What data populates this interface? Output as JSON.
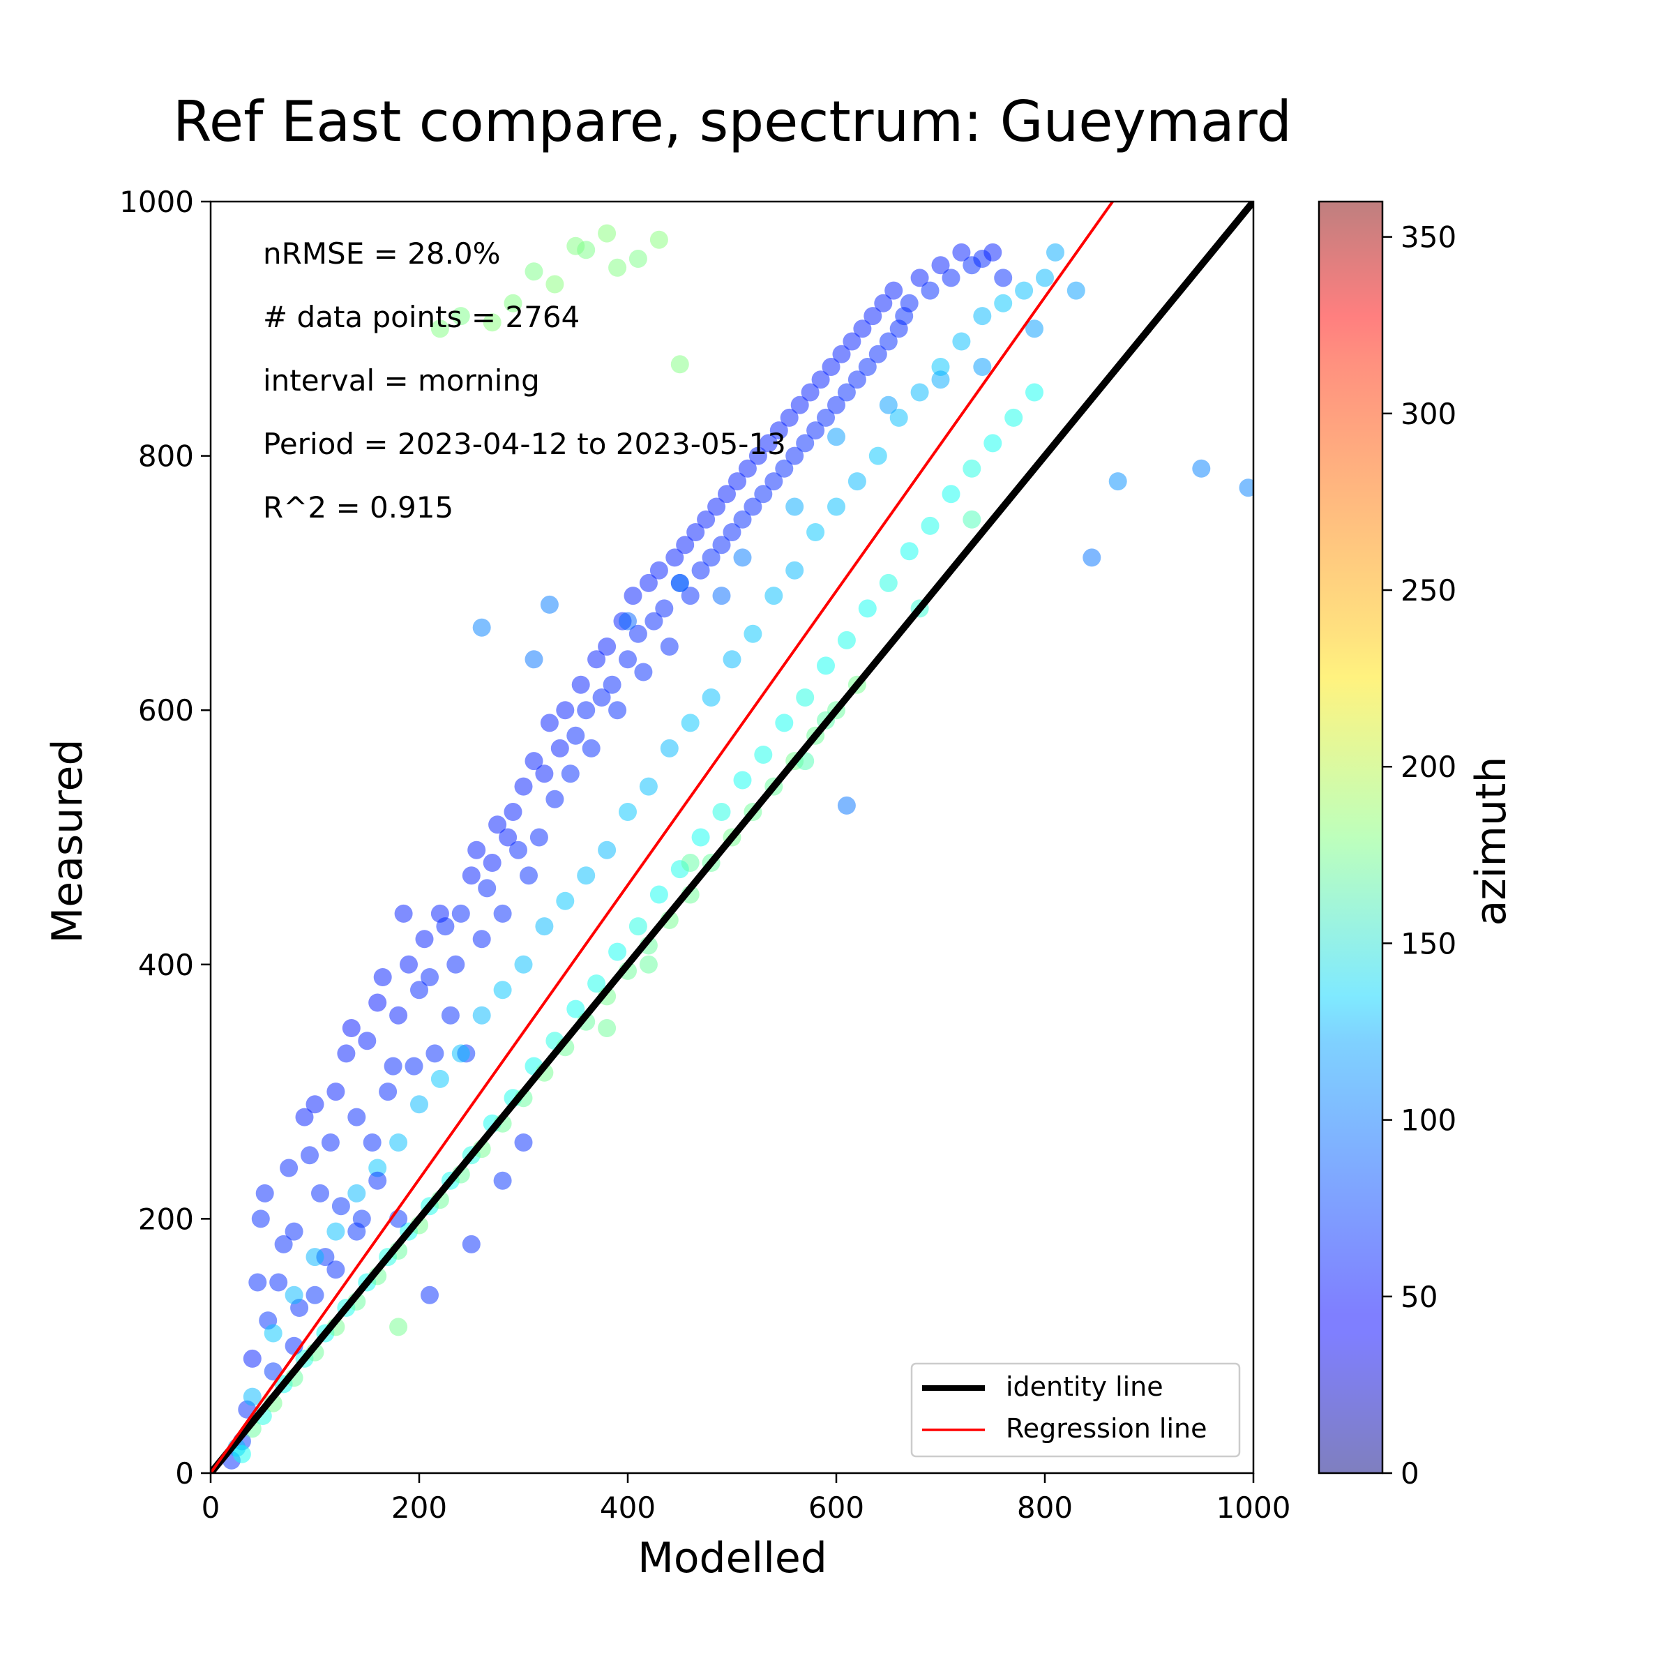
{
  "chart_data": {
    "type": "scatter",
    "title": "Ref East compare, spectrum: Gueymard",
    "xlabel": "Modelled",
    "ylabel": "Measured",
    "xlim": [
      0,
      1000
    ],
    "ylim": [
      0,
      1000
    ],
    "x_ticks": [
      "0",
      "200",
      "400",
      "600",
      "800",
      "1000"
    ],
    "y_ticks": [
      "0",
      "200",
      "400",
      "600",
      "800",
      "1000"
    ],
    "grid": false,
    "annotations": [
      "nRMSE = 28.0%",
      "# data points = 2764",
      "interval = morning",
      "Period = 2023-04-12 to 2023-05-13",
      "R^2 = 0.915"
    ],
    "legend": {
      "placement": "lower-right",
      "entries": [
        {
          "label": "identity line",
          "color": "#000000"
        },
        {
          "label": "Regression line",
          "color": "#ff0000"
        }
      ]
    },
    "colorbar": {
      "label": "azimuth",
      "range": [
        0,
        360
      ],
      "ticks": [
        "0",
        "50",
        "100",
        "150",
        "200",
        "250",
        "300",
        "350"
      ],
      "colormap": "jet",
      "alpha": 0.5
    },
    "lines": [
      {
        "name": "identity line",
        "points": [
          [
            0,
            0
          ],
          [
            1000,
            1000
          ]
        ],
        "color": "#000000"
      },
      {
        "name": "Regression line",
        "points": [
          [
            0,
            0
          ],
          [
            865,
            1000
          ]
        ],
        "color": "#ff0000"
      }
    ],
    "point_count": 2764,
    "points": [
      [
        20,
        10,
        60
      ],
      [
        30,
        25,
        65
      ],
      [
        35,
        50,
        60
      ],
      [
        40,
        90,
        55
      ],
      [
        45,
        150,
        60
      ],
      [
        48,
        200,
        60
      ],
      [
        52,
        220,
        58
      ],
      [
        55,
        120,
        62
      ],
      [
        60,
        80,
        65
      ],
      [
        65,
        150,
        60
      ],
      [
        70,
        180,
        60
      ],
      [
        75,
        240,
        58
      ],
      [
        80,
        190,
        60
      ],
      [
        85,
        130,
        60
      ],
      [
        90,
        280,
        55
      ],
      [
        95,
        250,
        58
      ],
      [
        100,
        290,
        55
      ],
      [
        105,
        220,
        60
      ],
      [
        110,
        170,
        62
      ],
      [
        115,
        260,
        58
      ],
      [
        120,
        300,
        55
      ],
      [
        125,
        210,
        62
      ],
      [
        130,
        330,
        55
      ],
      [
        135,
        350,
        52
      ],
      [
        140,
        280,
        58
      ],
      [
        145,
        200,
        62
      ],
      [
        150,
        340,
        55
      ],
      [
        155,
        260,
        60
      ],
      [
        160,
        370,
        52
      ],
      [
        165,
        390,
        55
      ],
      [
        170,
        300,
        58
      ],
      [
        175,
        320,
        58
      ],
      [
        180,
        360,
        55
      ],
      [
        185,
        440,
        55
      ],
      [
        190,
        400,
        55
      ],
      [
        195,
        320,
        60
      ],
      [
        200,
        380,
        58
      ],
      [
        205,
        420,
        55
      ],
      [
        210,
        390,
        58
      ],
      [
        215,
        330,
        60
      ],
      [
        220,
        440,
        55
      ],
      [
        225,
        430,
        58
      ],
      [
        230,
        360,
        60
      ],
      [
        235,
        400,
        58
      ],
      [
        240,
        440,
        58
      ],
      [
        245,
        330,
        62
      ],
      [
        250,
        470,
        55
      ],
      [
        255,
        490,
        55
      ],
      [
        260,
        420,
        58
      ],
      [
        265,
        460,
        58
      ],
      [
        270,
        480,
        55
      ],
      [
        275,
        510,
        55
      ],
      [
        280,
        440,
        60
      ],
      [
        285,
        500,
        55
      ],
      [
        290,
        520,
        55
      ],
      [
        295,
        490,
        58
      ],
      [
        300,
        540,
        55
      ],
      [
        305,
        470,
        60
      ],
      [
        310,
        560,
        55
      ],
      [
        315,
        500,
        58
      ],
      [
        320,
        550,
        55
      ],
      [
        325,
        590,
        55
      ],
      [
        330,
        530,
        58
      ],
      [
        335,
        570,
        55
      ],
      [
        340,
        600,
        55
      ],
      [
        345,
        550,
        60
      ],
      [
        350,
        580,
        58
      ],
      [
        355,
        620,
        55
      ],
      [
        360,
        600,
        58
      ],
      [
        365,
        570,
        60
      ],
      [
        370,
        640,
        55
      ],
      [
        375,
        610,
        58
      ],
      [
        380,
        650,
        55
      ],
      [
        385,
        620,
        58
      ],
      [
        390,
        600,
        60
      ],
      [
        395,
        670,
        55
      ],
      [
        400,
        640,
        58
      ],
      [
        405,
        690,
        55
      ],
      [
        410,
        660,
        58
      ],
      [
        415,
        630,
        60
      ],
      [
        420,
        700,
        55
      ],
      [
        425,
        670,
        58
      ],
      [
        430,
        710,
        55
      ],
      [
        435,
        680,
        58
      ],
      [
        440,
        650,
        60
      ],
      [
        445,
        720,
        55
      ],
      [
        450,
        700,
        58
      ],
      [
        455,
        730,
        55
      ],
      [
        460,
        690,
        60
      ],
      [
        465,
        740,
        55
      ],
      [
        470,
        710,
        58
      ],
      [
        475,
        750,
        55
      ],
      [
        480,
        720,
        60
      ],
      [
        485,
        760,
        55
      ],
      [
        490,
        730,
        58
      ],
      [
        495,
        770,
        55
      ],
      [
        500,
        740,
        58
      ],
      [
        505,
        780,
        55
      ],
      [
        510,
        750,
        60
      ],
      [
        515,
        790,
        55
      ],
      [
        520,
        760,
        58
      ],
      [
        525,
        800,
        55
      ],
      [
        530,
        770,
        60
      ],
      [
        535,
        810,
        55
      ],
      [
        540,
        780,
        58
      ],
      [
        545,
        820,
        55
      ],
      [
        550,
        790,
        60
      ],
      [
        555,
        830,
        55
      ],
      [
        560,
        800,
        58
      ],
      [
        565,
        840,
        55
      ],
      [
        570,
        810,
        60
      ],
      [
        575,
        850,
        55
      ],
      [
        580,
        820,
        58
      ],
      [
        585,
        860,
        55
      ],
      [
        590,
        830,
        60
      ],
      [
        595,
        870,
        55
      ],
      [
        600,
        840,
        58
      ],
      [
        605,
        880,
        55
      ],
      [
        610,
        850,
        60
      ],
      [
        615,
        890,
        55
      ],
      [
        620,
        860,
        58
      ],
      [
        625,
        900,
        55
      ],
      [
        630,
        870,
        60
      ],
      [
        635,
        910,
        55
      ],
      [
        640,
        880,
        58
      ],
      [
        645,
        920,
        55
      ],
      [
        650,
        890,
        60
      ],
      [
        655,
        930,
        55
      ],
      [
        660,
        900,
        58
      ],
      [
        665,
        910,
        60
      ],
      [
        670,
        920,
        58
      ],
      [
        680,
        940,
        55
      ],
      [
        690,
        930,
        60
      ],
      [
        700,
        950,
        55
      ],
      [
        710,
        940,
        58
      ],
      [
        720,
        960,
        55
      ],
      [
        730,
        950,
        60
      ],
      [
        740,
        955,
        58
      ],
      [
        750,
        960,
        55
      ],
      [
        760,
        940,
        60
      ],
      [
        25,
        20,
        110
      ],
      [
        40,
        60,
        110
      ],
      [
        60,
        110,
        115
      ],
      [
        80,
        140,
        110
      ],
      [
        100,
        170,
        108
      ],
      [
        120,
        190,
        112
      ],
      [
        140,
        220,
        110
      ],
      [
        160,
        240,
        115
      ],
      [
        180,
        260,
        112
      ],
      [
        200,
        290,
        110
      ],
      [
        220,
        310,
        115
      ],
      [
        240,
        330,
        112
      ],
      [
        260,
        360,
        110
      ],
      [
        280,
        380,
        115
      ],
      [
        300,
        400,
        112
      ],
      [
        320,
        430,
        110
      ],
      [
        340,
        450,
        115
      ],
      [
        360,
        470,
        112
      ],
      [
        380,
        490,
        110
      ],
      [
        400,
        520,
        115
      ],
      [
        420,
        540,
        112
      ],
      [
        440,
        570,
        110
      ],
      [
        460,
        590,
        115
      ],
      [
        480,
        610,
        112
      ],
      [
        500,
        640,
        110
      ],
      [
        520,
        660,
        115
      ],
      [
        540,
        690,
        112
      ],
      [
        560,
        710,
        110
      ],
      [
        580,
        740,
        115
      ],
      [
        600,
        760,
        112
      ],
      [
        620,
        780,
        110
      ],
      [
        640,
        800,
        115
      ],
      [
        660,
        830,
        112
      ],
      [
        680,
        850,
        110
      ],
      [
        700,
        870,
        115
      ],
      [
        720,
        890,
        112
      ],
      [
        740,
        910,
        110
      ],
      [
        760,
        920,
        115
      ],
      [
        780,
        930,
        112
      ],
      [
        800,
        940,
        110
      ],
      [
        560,
        760,
        105
      ],
      [
        600,
        815,
        100
      ],
      [
        650,
        840,
        100
      ],
      [
        700,
        860,
        105
      ],
      [
        740,
        870,
        100
      ],
      [
        790,
        900,
        100
      ],
      [
        810,
        960,
        105
      ],
      [
        830,
        930,
        100
      ],
      [
        870,
        780,
        95
      ],
      [
        950,
        790,
        90
      ],
      [
        995,
        775,
        90
      ],
      [
        845,
        720,
        85
      ],
      [
        610,
        525,
        85
      ],
      [
        310,
        640,
        85
      ],
      [
        260,
        665,
        90
      ],
      [
        325,
        683,
        88
      ],
      [
        400,
        670,
        80
      ],
      [
        450,
        700,
        85
      ],
      [
        490,
        690,
        82
      ],
      [
        510,
        720,
        88
      ],
      [
        30,
        15,
        140
      ],
      [
        50,
        45,
        145
      ],
      [
        70,
        70,
        140
      ],
      [
        90,
        90,
        145
      ],
      [
        110,
        110,
        140
      ],
      [
        130,
        130,
        142
      ],
      [
        150,
        150,
        140
      ],
      [
        170,
        170,
        145
      ],
      [
        190,
        190,
        140
      ],
      [
        210,
        210,
        142
      ],
      [
        230,
        230,
        140
      ],
      [
        250,
        250,
        145
      ],
      [
        270,
        275,
        140
      ],
      [
        290,
        295,
        142
      ],
      [
        310,
        320,
        140
      ],
      [
        330,
        340,
        145
      ],
      [
        350,
        365,
        140
      ],
      [
        370,
        385,
        142
      ],
      [
        390,
        410,
        140
      ],
      [
        410,
        430,
        145
      ],
      [
        430,
        455,
        140
      ],
      [
        450,
        475,
        142
      ],
      [
        470,
        500,
        140
      ],
      [
        490,
        520,
        145
      ],
      [
        510,
        545,
        140
      ],
      [
        530,
        565,
        142
      ],
      [
        550,
        590,
        140
      ],
      [
        570,
        610,
        145
      ],
      [
        590,
        635,
        140
      ],
      [
        610,
        655,
        142
      ],
      [
        630,
        680,
        140
      ],
      [
        650,
        700,
        145
      ],
      [
        670,
        725,
        140
      ],
      [
        690,
        745,
        142
      ],
      [
        710,
        770,
        140
      ],
      [
        730,
        790,
        145
      ],
      [
        750,
        810,
        140
      ],
      [
        770,
        830,
        142
      ],
      [
        790,
        850,
        140
      ],
      [
        680,
        680,
        150
      ],
      [
        40,
        35,
        170
      ],
      [
        60,
        55,
        175
      ],
      [
        80,
        75,
        170
      ],
      [
        100,
        95,
        172
      ],
      [
        120,
        115,
        175
      ],
      [
        140,
        135,
        170
      ],
      [
        160,
        155,
        172
      ],
      [
        180,
        175,
        170
      ],
      [
        200,
        195,
        175
      ],
      [
        220,
        215,
        172
      ],
      [
        240,
        235,
        170
      ],
      [
        260,
        255,
        175
      ],
      [
        280,
        275,
        172
      ],
      [
        300,
        295,
        170
      ],
      [
        320,
        315,
        175
      ],
      [
        340,
        335,
        172
      ],
      [
        360,
        355,
        170
      ],
      [
        380,
        375,
        175
      ],
      [
        400,
        395,
        172
      ],
      [
        420,
        415,
        170
      ],
      [
        440,
        435,
        175
      ],
      [
        460,
        455,
        172
      ],
      [
        480,
        480,
        170
      ],
      [
        500,
        500,
        175
      ],
      [
        520,
        520,
        172
      ],
      [
        540,
        540,
        170
      ],
      [
        560,
        560,
        175
      ],
      [
        580,
        580,
        172
      ],
      [
        600,
        600,
        170
      ],
      [
        620,
        620,
        175
      ],
      [
        220,
        900,
        180
      ],
      [
        240,
        910,
        178
      ],
      [
        270,
        905,
        182
      ],
      [
        290,
        920,
        180
      ],
      [
        310,
        945,
        178
      ],
      [
        330,
        935,
        182
      ],
      [
        350,
        965,
        180
      ],
      [
        360,
        962,
        178
      ],
      [
        380,
        975,
        182
      ],
      [
        390,
        948,
        180
      ],
      [
        410,
        955,
        178
      ],
      [
        430,
        970,
        182
      ],
      [
        450,
        872,
        180
      ],
      [
        730,
        750,
        160
      ],
      [
        590,
        592,
        165
      ],
      [
        570,
        560,
        162
      ],
      [
        460,
        480,
        168
      ],
      [
        420,
        400,
        170
      ],
      [
        380,
        350,
        172
      ],
      [
        180,
        115,
        175
      ],
      [
        210,
        140,
        60
      ],
      [
        250,
        180,
        60
      ],
      [
        280,
        230,
        62
      ],
      [
        300,
        260,
        60
      ],
      [
        180,
        200,
        62
      ],
      [
        160,
        230,
        60
      ],
      [
        140,
        190,
        62
      ],
      [
        120,
        160,
        60
      ],
      [
        100,
        140,
        62
      ],
      [
        80,
        100,
        60
      ]
    ]
  }
}
